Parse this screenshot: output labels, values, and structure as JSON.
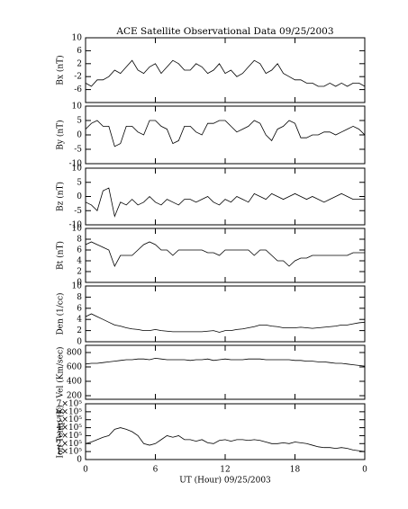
{
  "chart_data": [
    {
      "type": "line",
      "title": "ACE Satellite Observational Data   09/25/2003",
      "ylabel": "Bx (nT)",
      "x": [
        0,
        0.5,
        1,
        1.5,
        2,
        2.5,
        3,
        3.5,
        4,
        4.5,
        5,
        5.5,
        6,
        6.5,
        7,
        7.5,
        8,
        8.5,
        9,
        9.5,
        10,
        10.5,
        11,
        11.5,
        12,
        12.5,
        13,
        13.5,
        14,
        14.5,
        15,
        15.5,
        16,
        16.5,
        17,
        17.5,
        18,
        18.5,
        19,
        19.5,
        20,
        20.5,
        21,
        21.5,
        22,
        22.5,
        23,
        23.5,
        24
      ],
      "values": [
        -4,
        -5,
        -3,
        -3,
        -2,
        0,
        -1,
        1,
        3,
        0,
        -1,
        1,
        2,
        -1,
        1,
        3,
        2,
        0,
        0,
        2,
        1,
        -1,
        0,
        2,
        -1,
        0,
        -2,
        -1,
        1,
        3,
        2,
        -1,
        0,
        2,
        -1,
        -2,
        -3,
        -3,
        -4,
        -4,
        -5,
        -5,
        -4,
        -5,
        -4,
        -5,
        -4,
        -4,
        -5
      ],
      "xlim": [
        0,
        24
      ],
      "ylim": [
        -10,
        10
      ],
      "yticks": [
        -6,
        -2,
        2,
        6,
        10
      ]
    },
    {
      "type": "line",
      "ylabel": "By (nT)",
      "x": [
        0,
        0.5,
        1,
        1.5,
        2,
        2.5,
        3,
        3.5,
        4,
        4.5,
        5,
        5.5,
        6,
        6.5,
        7,
        7.5,
        8,
        8.5,
        9,
        9.5,
        10,
        10.5,
        11,
        11.5,
        12,
        12.5,
        13,
        13.5,
        14,
        14.5,
        15,
        15.5,
        16,
        16.5,
        17,
        17.5,
        18,
        18.5,
        19,
        19.5,
        20,
        20.5,
        21,
        21.5,
        22,
        22.5,
        23,
        23.5,
        24
      ],
      "values": [
        2,
        4,
        5,
        3,
        3,
        -4,
        -3,
        3,
        3,
        1,
        0,
        5,
        5,
        3,
        2,
        -3,
        -2,
        3,
        3,
        1,
        0,
        4,
        4,
        5,
        5,
        3,
        1,
        2,
        3,
        5,
        4,
        0,
        -2,
        2,
        3,
        5,
        4,
        -1,
        -1,
        0,
        0,
        1,
        1,
        0,
        1,
        2,
        3,
        2,
        0
      ],
      "xlim": [
        0,
        24
      ],
      "ylim": [
        -10,
        10
      ],
      "yticks": [
        -10,
        -5,
        0,
        5,
        10
      ]
    },
    {
      "type": "line",
      "ylabel": "Bz (nT)",
      "x": [
        0,
        0.5,
        1,
        1.5,
        2,
        2.5,
        3,
        3.5,
        4,
        4.5,
        5,
        5.5,
        6,
        6.5,
        7,
        7.5,
        8,
        8.5,
        9,
        9.5,
        10,
        10.5,
        11,
        11.5,
        12,
        12.5,
        13,
        13.5,
        14,
        14.5,
        15,
        15.5,
        16,
        16.5,
        17,
        17.5,
        18,
        18.5,
        19,
        19.5,
        20,
        20.5,
        21,
        21.5,
        22,
        22.5,
        23,
        23.5,
        24
      ],
      "values": [
        -2,
        -3,
        -5,
        2,
        3,
        -7,
        -2,
        -3,
        -1,
        -3,
        -2,
        0,
        -2,
        -3,
        -1,
        -2,
        -3,
        -1,
        -1,
        -2,
        -1,
        0,
        -2,
        -3,
        -1,
        -2,
        0,
        -1,
        -2,
        1,
        0,
        -1,
        1,
        0,
        -1,
        0,
        1,
        0,
        -1,
        0,
        -1,
        -2,
        -1,
        0,
        1,
        0,
        -1,
        -1,
        -1
      ],
      "xlim": [
        0,
        24
      ],
      "ylim": [
        -10,
        10
      ],
      "yticks": [
        -10,
        -5,
        0,
        5,
        10
      ]
    },
    {
      "type": "line",
      "ylabel": "Bt (nT)",
      "x": [
        0,
        0.5,
        1,
        1.5,
        2,
        2.5,
        3,
        3.5,
        4,
        4.5,
        5,
        5.5,
        6,
        6.5,
        7,
        7.5,
        8,
        8.5,
        9,
        9.5,
        10,
        10.5,
        11,
        11.5,
        12,
        12.5,
        13,
        13.5,
        14,
        14.5,
        15,
        15.5,
        16,
        16.5,
        17,
        17.5,
        18,
        18.5,
        19,
        19.5,
        20,
        20.5,
        21,
        21.5,
        22,
        22.5,
        23,
        23.5,
        24
      ],
      "values": [
        7,
        7.5,
        7,
        6.5,
        6,
        3,
        5,
        5,
        5,
        6,
        7,
        7.5,
        7,
        6,
        6,
        5,
        6,
        6,
        6,
        6,
        6,
        5.5,
        5.5,
        5,
        6,
        6,
        6,
        6,
        6,
        5,
        6,
        6,
        5,
        4,
        4,
        3,
        4,
        4.5,
        4.5,
        5,
        5,
        5,
        5,
        5,
        5,
        5,
        5.5,
        5.5,
        5.5
      ],
      "xlim": [
        0,
        24
      ],
      "ylim": [
        0,
        10
      ],
      "yticks": [
        0,
        2,
        4,
        6,
        8,
        10
      ]
    },
    {
      "type": "line",
      "ylabel": "Den (1/cc)",
      "x": [
        0,
        0.5,
        1,
        1.5,
        2,
        2.5,
        3,
        3.5,
        4,
        4.5,
        5,
        5.5,
        6,
        6.5,
        7,
        7.5,
        8,
        8.5,
        9,
        9.5,
        10,
        10.5,
        11,
        11.5,
        12,
        12.5,
        13,
        13.5,
        14,
        14.5,
        15,
        15.5,
        16,
        16.5,
        17,
        17.5,
        18,
        18.5,
        19,
        19.5,
        20,
        20.5,
        21,
        21.5,
        22,
        22.5,
        23,
        23.5,
        24
      ],
      "values": [
        4.5,
        5,
        4.5,
        4,
        3.5,
        3,
        2.8,
        2.5,
        2.3,
        2.2,
        2,
        2,
        2.2,
        2,
        1.9,
        1.8,
        1.8,
        1.8,
        1.8,
        1.8,
        1.8,
        1.9,
        2,
        1.7,
        2,
        2,
        2.2,
        2.3,
        2.5,
        2.7,
        3,
        3,
        2.8,
        2.7,
        2.5,
        2.5,
        2.5,
        2.6,
        2.5,
        2.4,
        2.5,
        2.6,
        2.7,
        2.8,
        3,
        3,
        3.2,
        3.4,
        3.5
      ],
      "xlim": [
        0,
        24
      ],
      "ylim": [
        0,
        10
      ],
      "yticks": [
        0,
        2,
        4,
        6,
        8,
        10
      ]
    },
    {
      "type": "line",
      "ylabel": "Vel (Km/sec)",
      "x": [
        0,
        0.5,
        1,
        1.5,
        2,
        2.5,
        3,
        3.5,
        4,
        4.5,
        5,
        5.5,
        6,
        6.5,
        7,
        7.5,
        8,
        8.5,
        9,
        9.5,
        10,
        10.5,
        11,
        11.5,
        12,
        12.5,
        13,
        13.5,
        14,
        14.5,
        15,
        15.5,
        16,
        16.5,
        17,
        17.5,
        18,
        18.5,
        19,
        19.5,
        20,
        20.5,
        21,
        21.5,
        22,
        22.5,
        23,
        23.5,
        24
      ],
      "values": [
        640,
        650,
        650,
        660,
        670,
        680,
        690,
        700,
        700,
        710,
        710,
        700,
        720,
        710,
        700,
        700,
        700,
        700,
        690,
        700,
        700,
        710,
        690,
        700,
        710,
        700,
        700,
        700,
        710,
        710,
        710,
        700,
        700,
        700,
        700,
        700,
        690,
        690,
        680,
        680,
        670,
        670,
        660,
        650,
        650,
        640,
        630,
        620,
        610
      ],
      "xlim": [
        0,
        24
      ],
      "ylim": [
        150,
        900
      ],
      "yticks": [
        200,
        400,
        600,
        800
      ]
    },
    {
      "type": "line",
      "ylabel": "Ion Temp (K)",
      "xlabel": "UT (Hour)  09/25/2003",
      "x": [
        0,
        0.5,
        1,
        1.5,
        2,
        2.5,
        3,
        3.5,
        4,
        4.5,
        5,
        5.5,
        6,
        6.5,
        7,
        7.5,
        8,
        8.5,
        9,
        9.5,
        10,
        10.5,
        11,
        11.5,
        12,
        12.5,
        13,
        13.5,
        14,
        14.5,
        15,
        15.5,
        16,
        16.5,
        17,
        17.5,
        18,
        18.5,
        19,
        19.5,
        20,
        20.5,
        21,
        21.5,
        22,
        22.5,
        23,
        23.5,
        24
      ],
      "values": [
        200000,
        220000,
        250000,
        280000,
        300000,
        380000,
        400000,
        380000,
        350000,
        300000,
        200000,
        180000,
        200000,
        250000,
        300000,
        280000,
        300000,
        250000,
        250000,
        230000,
        250000,
        210000,
        200000,
        240000,
        250000,
        230000,
        250000,
        250000,
        240000,
        250000,
        240000,
        220000,
        200000,
        200000,
        210000,
        200000,
        220000,
        210000,
        200000,
        180000,
        160000,
        150000,
        150000,
        140000,
        150000,
        140000,
        120000,
        110000,
        100000
      ],
      "xlim": [
        0,
        24
      ],
      "ylim": [
        0,
        700000
      ],
      "yticks": [
        0,
        {
          "value": 100000,
          "label": "1×10⁵"
        },
        {
          "value": 200000,
          "label": "2×10⁵"
        },
        {
          "value": 300000,
          "label": "3×10⁵"
        },
        {
          "value": 400000,
          "label": "4×10⁵"
        },
        {
          "value": 500000,
          "label": "5×10⁵"
        },
        {
          "value": 600000,
          "label": "6×10⁵"
        },
        {
          "value": 700000,
          "label": "7×10⁵"
        }
      ],
      "xticks": [
        0,
        6,
        12,
        18,
        {
          "value": 24,
          "label": "0"
        }
      ]
    }
  ]
}
